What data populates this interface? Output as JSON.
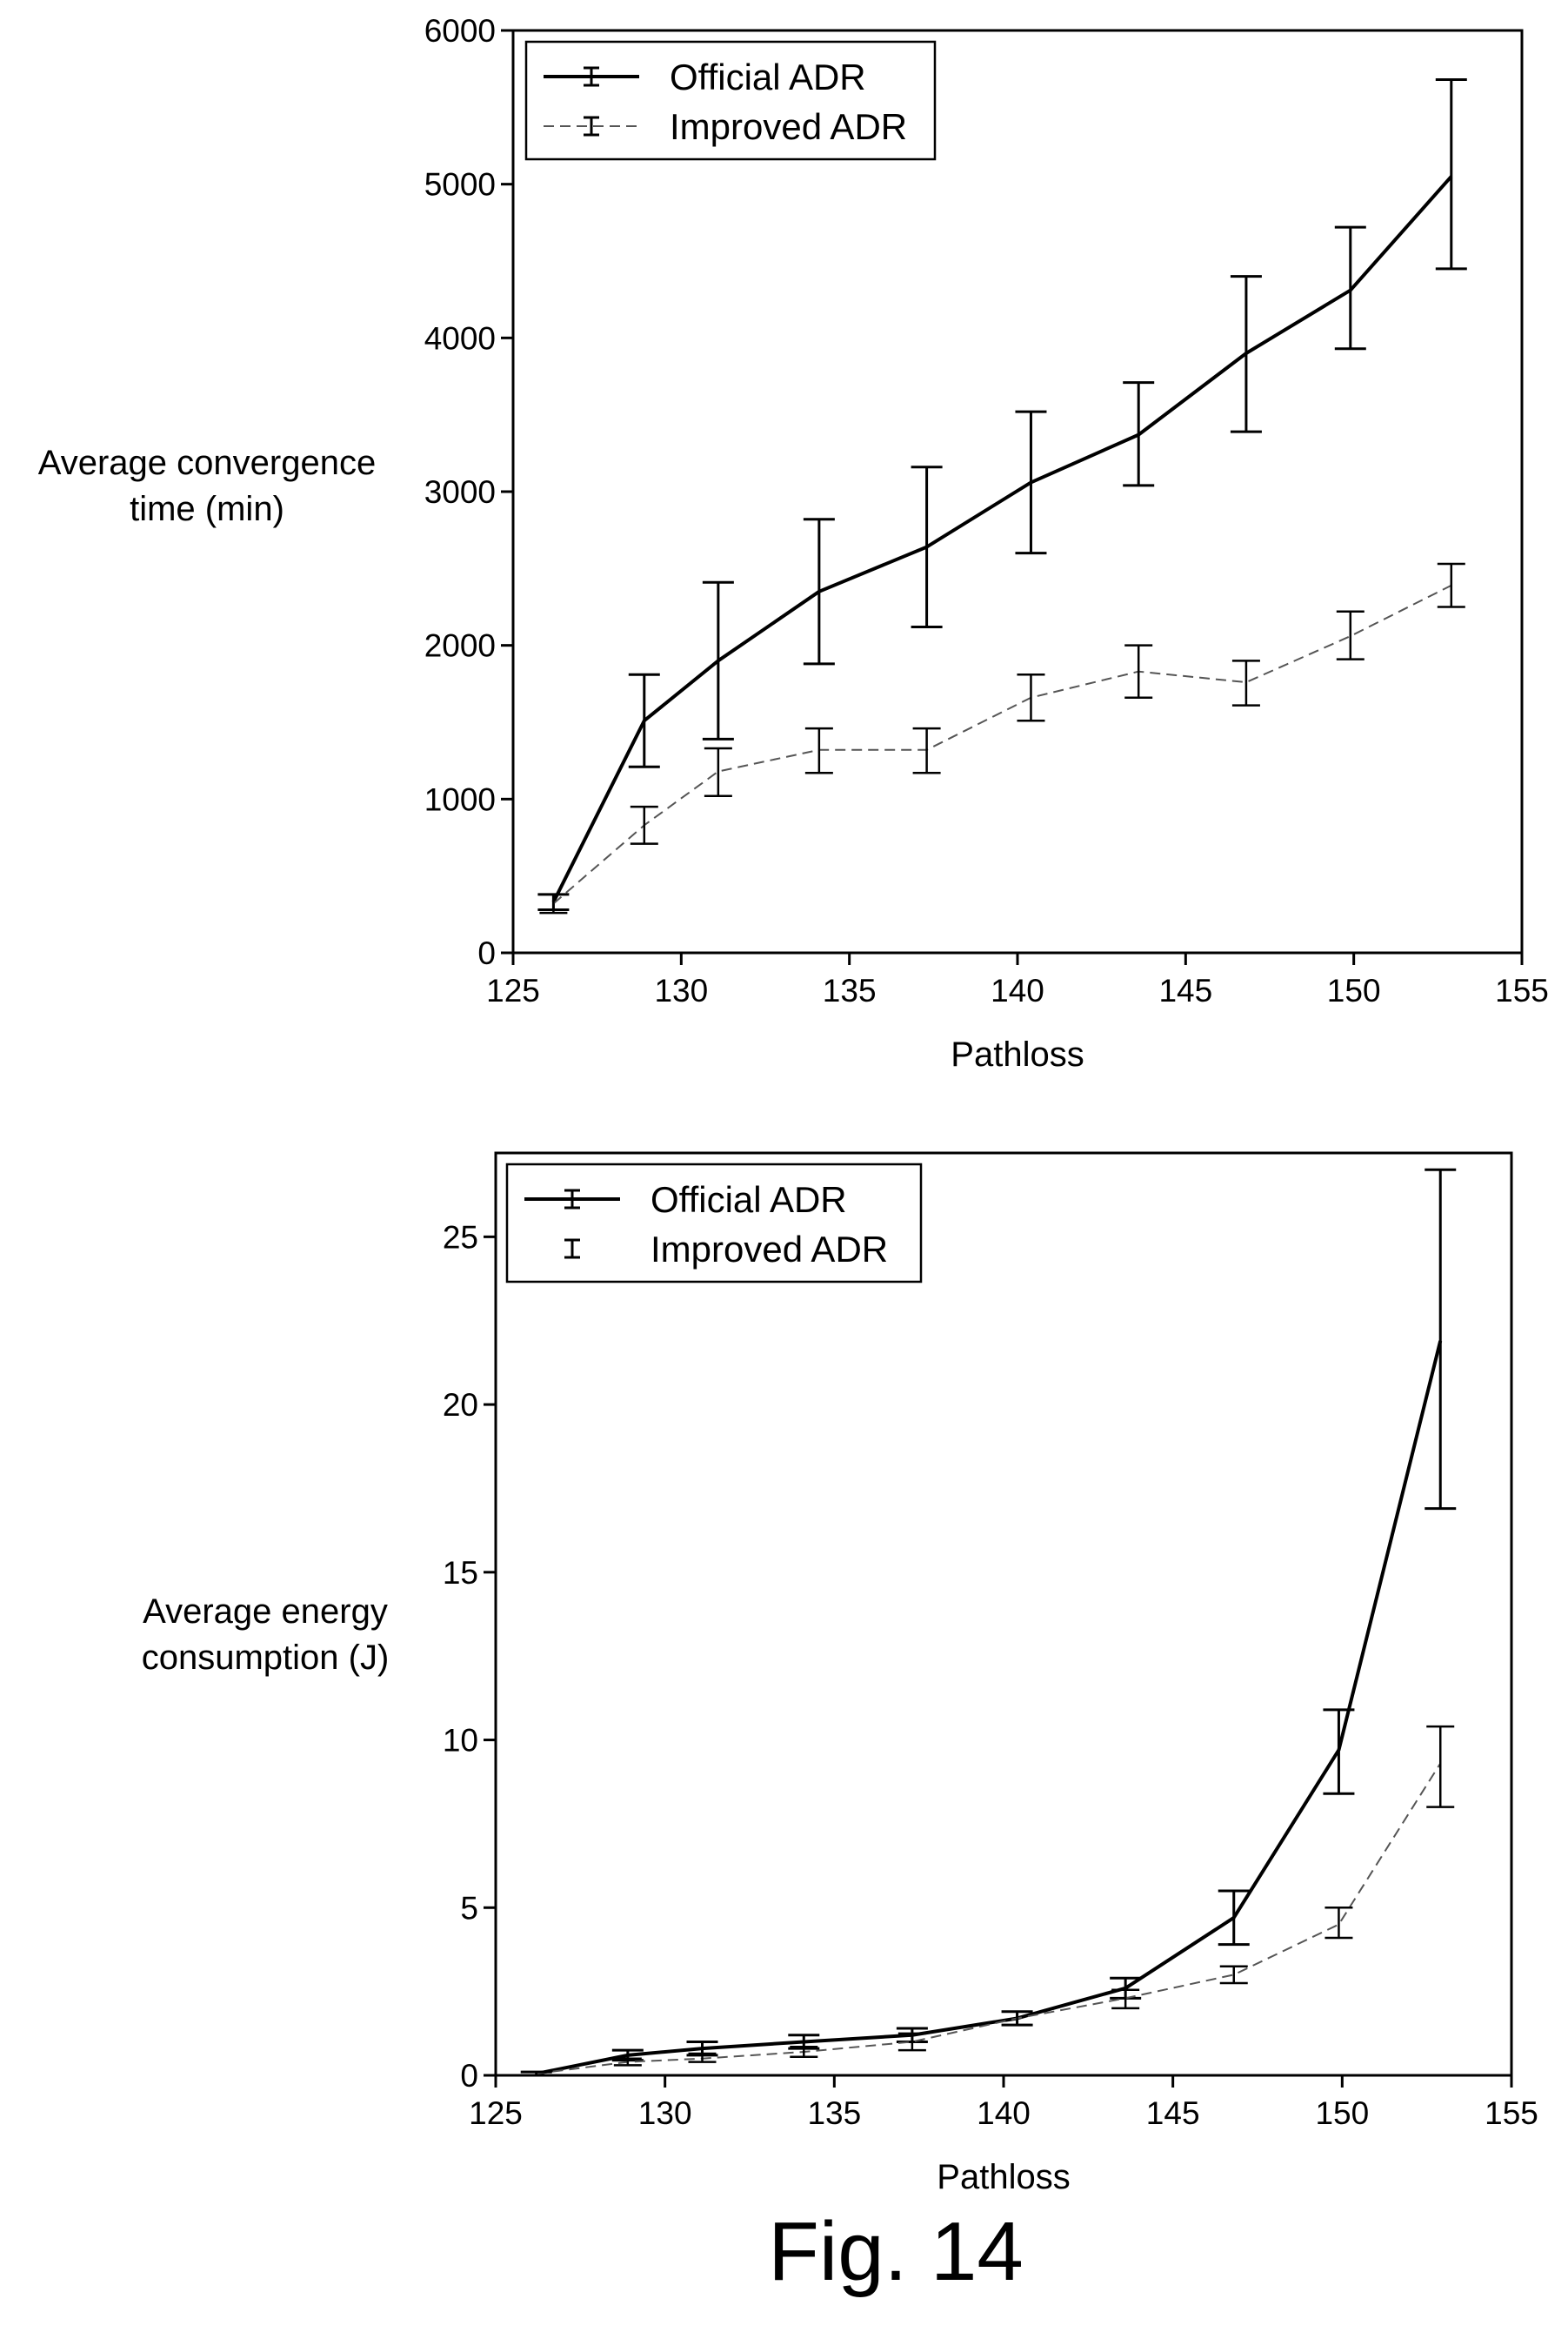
{
  "figure": {
    "caption": "Fig. 14"
  },
  "chart_data": [
    {
      "type": "line",
      "xlabel": "Pathloss",
      "ylabel": [
        "Average convergence",
        "time (min)"
      ],
      "xlim": [
        125,
        155
      ],
      "ylim": [
        0,
        6000
      ],
      "xticks": [
        125,
        130,
        135,
        140,
        145,
        150,
        155
      ],
      "yticks": [
        0,
        1000,
        2000,
        3000,
        4000,
        5000,
        6000
      ],
      "grid": false,
      "legend_position": "top-left",
      "x": [
        126.2,
        128.9,
        131.1,
        134.1,
        137.3,
        140.4,
        143.6,
        146.8,
        149.9,
        152.9
      ],
      "series": [
        {
          "name": "Official ADR",
          "style": "solid",
          "color": "#000000",
          "values": [
            330,
            1510,
            1900,
            2350,
            2640,
            3060,
            3370,
            3900,
            4310,
            5050
          ],
          "err_low": [
            280,
            1210,
            1390,
            1880,
            2120,
            2600,
            3040,
            3390,
            3930,
            4450
          ],
          "err_high": [
            380,
            1810,
            2410,
            2820,
            3160,
            3520,
            3710,
            4400,
            4720,
            5680
          ]
        },
        {
          "name": "Improved ADR",
          "style": "dashed",
          "color": "#555555",
          "values": [
            320,
            830,
            1180,
            1320,
            1320,
            1660,
            1830,
            1760,
            2060,
            2390
          ],
          "err_low": [
            260,
            710,
            1020,
            1170,
            1170,
            1510,
            1660,
            1610,
            1910,
            2250
          ],
          "err_high": [
            380,
            950,
            1330,
            1460,
            1460,
            1810,
            2000,
            1900,
            2220,
            2530
          ]
        }
      ]
    },
    {
      "type": "line",
      "xlabel": "Pathloss",
      "ylabel": [
        "Average energy",
        "consumption (J)"
      ],
      "xlim": [
        125,
        155
      ],
      "ylim": [
        0,
        27.5
      ],
      "xticks": [
        125,
        130,
        135,
        140,
        145,
        150,
        155
      ],
      "yticks": [
        0,
        5,
        10,
        15,
        20,
        25
      ],
      "grid": false,
      "legend_position": "top-left",
      "x": [
        126.2,
        128.9,
        131.1,
        134.1,
        137.3,
        140.4,
        143.6,
        146.8,
        149.9,
        152.9
      ],
      "series": [
        {
          "name": "Official ADR",
          "style": "solid",
          "color": "#000000",
          "values": [
            0.05,
            0.6,
            0.8,
            1.0,
            1.2,
            1.7,
            2.6,
            4.7,
            9.7,
            21.9
          ],
          "err_low": [
            0.0,
            0.45,
            0.6,
            0.8,
            1.0,
            1.5,
            2.3,
            3.9,
            8.4,
            16.9
          ],
          "err_high": [
            0.1,
            0.75,
            1.0,
            1.2,
            1.4,
            1.9,
            2.9,
            5.5,
            10.9,
            27.0
          ]
        },
        {
          "name": "Improved ADR",
          "style": "dashed",
          "color": "#555555",
          "values": [
            0.05,
            0.4,
            0.5,
            0.7,
            1.0,
            1.7,
            2.3,
            3.0,
            4.5,
            9.3
          ],
          "err_low": [
            0.0,
            0.3,
            0.4,
            0.55,
            0.75,
            1.5,
            2.0,
            2.75,
            4.1,
            8.0
          ],
          "err_high": [
            0.1,
            0.5,
            0.65,
            0.85,
            1.25,
            1.9,
            2.55,
            3.25,
            5.0,
            10.4
          ]
        }
      ]
    }
  ]
}
